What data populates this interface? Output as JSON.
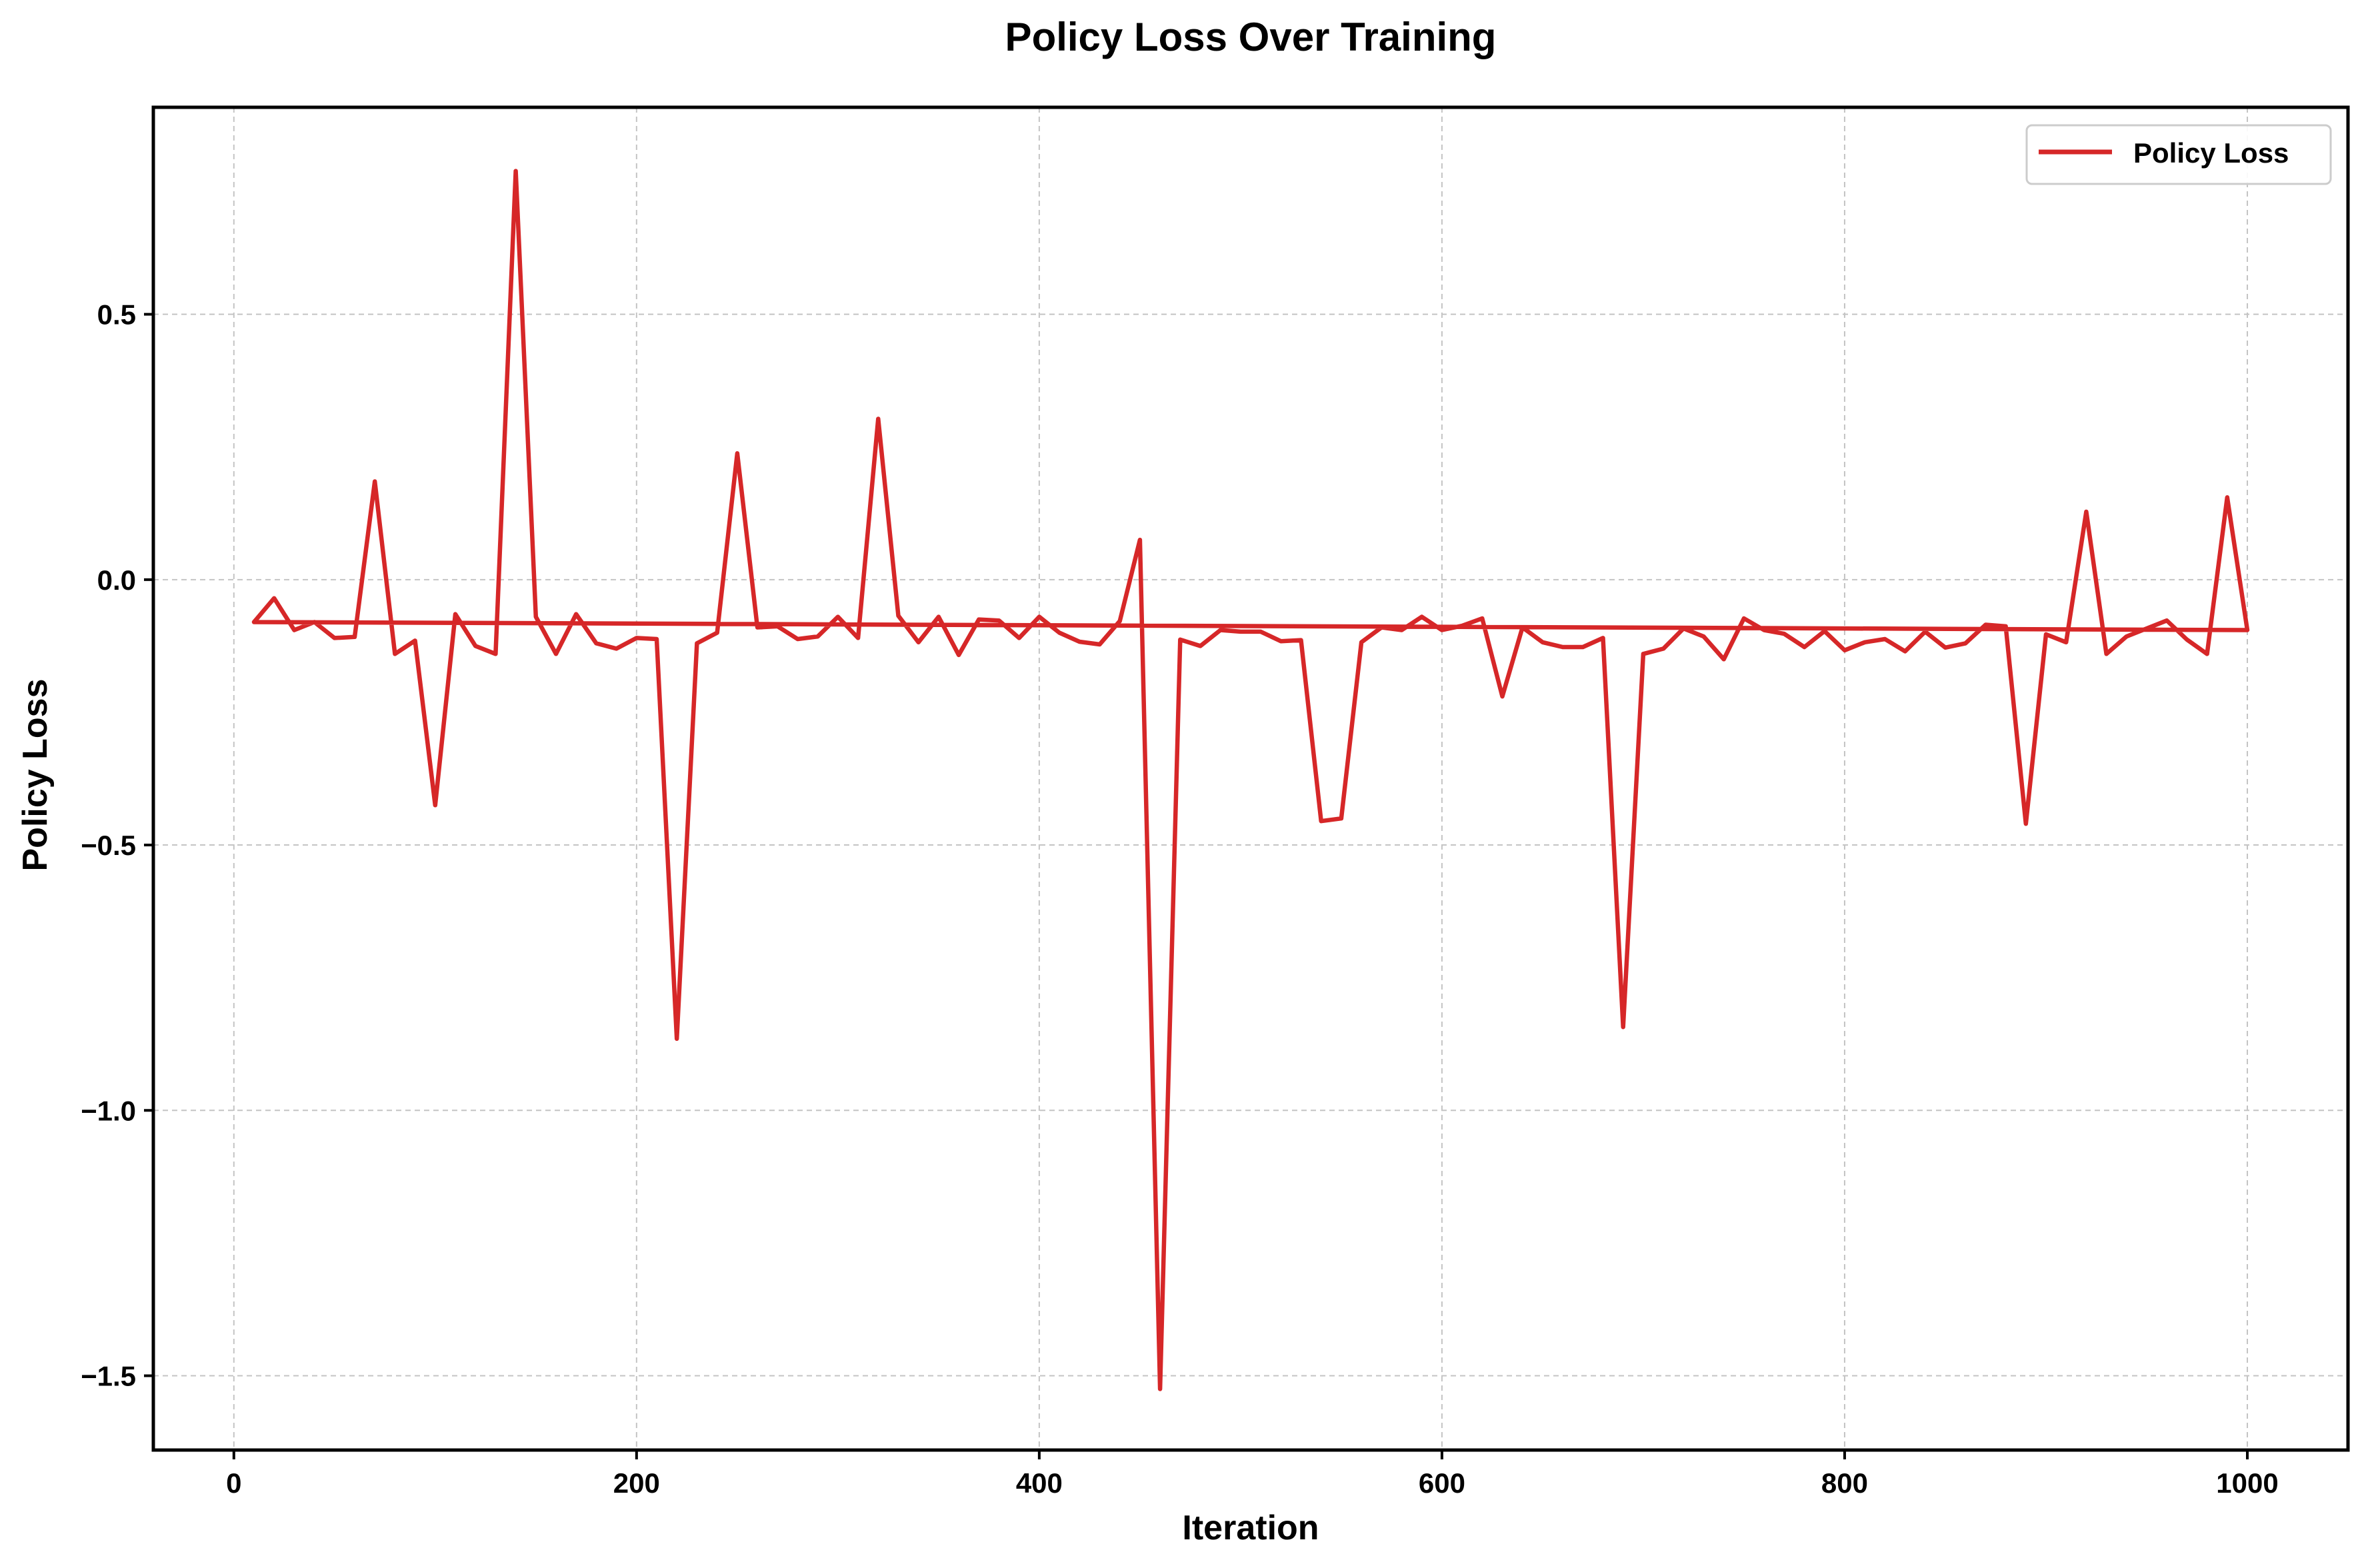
{
  "chart_data": {
    "type": "line",
    "title": "Policy Loss Over Training",
    "xlabel": "Iteration",
    "ylabel": "Policy Loss",
    "xlim": [
      -40,
      1050
    ],
    "ylim": [
      -1.64,
      0.89
    ],
    "xticks": [
      0,
      200,
      400,
      600,
      800,
      1000
    ],
    "yticks": [
      0.5,
      0.0,
      -0.5,
      -1.0,
      -1.5
    ],
    "xtick_labels": [
      "0",
      "200",
      "400",
      "600",
      "800",
      "1000"
    ],
    "ytick_labels": [
      "0.5",
      "0.0",
      "−0.5",
      "−1.0",
      "−1.5"
    ],
    "grid": true,
    "legend_position": "top-right",
    "series": [
      {
        "name": "Policy Loss",
        "color": "#d62728",
        "x": [
          10,
          20,
          30,
          40,
          50,
          60,
          70,
          80,
          90,
          100,
          110,
          120,
          130,
          140,
          150,
          160,
          170,
          180,
          190,
          200,
          210,
          220,
          230,
          240,
          250,
          260,
          270,
          280,
          290,
          300,
          310,
          320,
          330,
          340,
          350,
          360,
          370,
          380,
          390,
          400,
          410,
          420,
          430,
          440,
          450,
          460,
          470,
          480,
          490,
          500,
          510,
          520,
          530,
          540,
          550,
          560,
          570,
          580,
          590,
          600,
          610,
          620,
          630,
          640,
          650,
          660,
          670,
          680,
          690,
          700,
          710,
          720,
          730,
          740,
          750,
          760,
          770,
          780,
          790,
          800,
          810,
          820,
          830,
          840,
          850,
          860,
          870,
          880,
          890,
          900,
          910,
          920,
          930,
          940,
          950,
          960,
          970,
          980,
          990,
          1000,
          10
        ],
        "y": [
          -0.08,
          -0.035,
          -0.095,
          -0.08,
          -0.11,
          -0.108,
          0.185,
          -0.14,
          -0.115,
          -0.425,
          -0.065,
          -0.125,
          -0.14,
          0.77,
          -0.07,
          -0.14,
          -0.065,
          -0.12,
          -0.13,
          -0.11,
          -0.112,
          -0.865,
          -0.12,
          -0.1,
          0.238,
          -0.09,
          -0.088,
          -0.112,
          -0.107,
          -0.07,
          -0.11,
          0.303,
          -0.068,
          -0.118,
          -0.07,
          -0.142,
          -0.075,
          -0.077,
          -0.11,
          -0.07,
          -0.1,
          -0.117,
          -0.122,
          -0.078,
          0.075,
          -1.525,
          -0.113,
          -0.125,
          -0.095,
          -0.098,
          -0.098,
          -0.116,
          -0.114,
          -0.455,
          -0.45,
          -0.118,
          -0.09,
          -0.095,
          -0.07,
          -0.095,
          -0.087,
          -0.073,
          -0.22,
          -0.09,
          -0.118,
          -0.127,
          -0.127,
          -0.11,
          -0.843,
          -0.14,
          -0.13,
          -0.092,
          -0.107,
          -0.15,
          -0.073,
          -0.095,
          -0.102,
          -0.127,
          -0.097,
          -0.133,
          -0.118,
          -0.112,
          -0.135,
          -0.098,
          -0.128,
          -0.12,
          -0.085,
          -0.088,
          -0.46,
          -0.103,
          -0.118,
          0.128,
          -0.14,
          -0.107,
          -0.092,
          -0.077,
          -0.113,
          -0.14,
          0.155,
          -0.095,
          -0.08
        ]
      }
    ]
  }
}
